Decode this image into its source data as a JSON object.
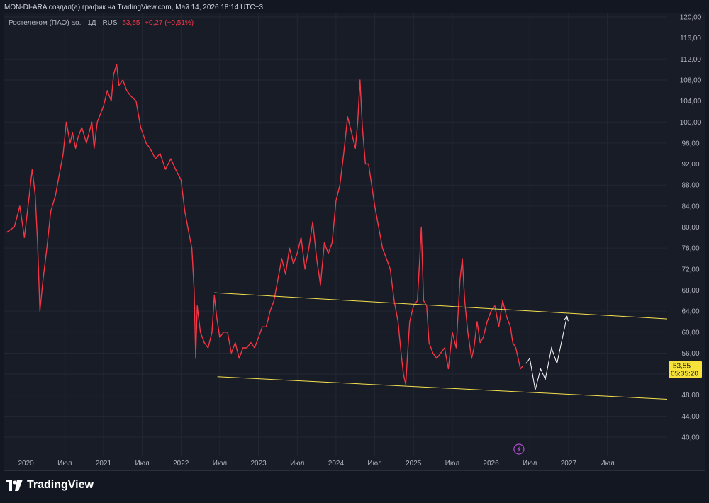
{
  "header": {
    "caption": "MON-DI-ARA создал(а) график на TradingView.com, Май 14, 2026 18:14 UTC+3"
  },
  "legend": {
    "symbol": "Ростелеком (ПАО) ао. · 1Д · RUS",
    "last": "53,55",
    "change": "+0,27 (+0,51%)"
  },
  "price_tag": {
    "value": "53,55",
    "countdown": "05:35:20"
  },
  "footer": {
    "brand": "TradingView"
  },
  "colors": {
    "series": "#f23645",
    "channel": "#f5e04f",
    "projection": "#ffffff",
    "tag_bg": "#f7e23a"
  },
  "chart_data": {
    "type": "line",
    "title": "Ростелеком (ПАО) ао. · 1Д · RUS",
    "ylim": [
      38,
      121
    ],
    "y_ticks": [
      "120,00",
      "116,00",
      "112,00",
      "108,00",
      "104,00",
      "100,00",
      "96,00",
      "92,00",
      "88,00",
      "84,00",
      "80,00",
      "76,00",
      "72,00",
      "68,00",
      "64,00",
      "60,00",
      "56,00",
      "52,00",
      "48,00",
      "44,00",
      "40,00"
    ],
    "x_ticks": [
      "2020",
      "Июл",
      "2021",
      "Июл",
      "2022",
      "Июл",
      "2023",
      "Июл",
      "2024",
      "Июл",
      "2025",
      "Июл",
      "2026",
      "Июл",
      "2027",
      "Июл"
    ],
    "x_tick_dates": [
      2020.0,
      2020.5,
      2021.0,
      2021.5,
      2022.0,
      2022.5,
      2023.0,
      2023.5,
      2024.0,
      2024.5,
      2025.0,
      2025.5,
      2026.0,
      2026.5,
      2027.0,
      2027.5
    ],
    "series": [
      {
        "values": [
          [
            2019.75,
            79
          ],
          [
            2019.85,
            80
          ],
          [
            2019.92,
            84
          ],
          [
            2019.98,
            78
          ],
          [
            2020.05,
            87
          ],
          [
            2020.08,
            91
          ],
          [
            2020.12,
            86
          ],
          [
            2020.15,
            77
          ],
          [
            2020.18,
            64
          ],
          [
            2020.22,
            70
          ],
          [
            2020.27,
            76
          ],
          [
            2020.32,
            83
          ],
          [
            2020.38,
            86
          ],
          [
            2020.43,
            90
          ],
          [
            2020.48,
            94
          ],
          [
            2020.52,
            100
          ],
          [
            2020.57,
            96
          ],
          [
            2020.6,
            98
          ],
          [
            2020.64,
            95
          ],
          [
            2020.67,
            97
          ],
          [
            2020.72,
            99
          ],
          [
            2020.78,
            96
          ],
          [
            2020.85,
            100
          ],
          [
            2020.88,
            95
          ],
          [
            2020.92,
            100
          ],
          [
            2021.0,
            103
          ],
          [
            2021.05,
            106
          ],
          [
            2021.1,
            104
          ],
          [
            2021.13,
            109
          ],
          [
            2021.17,
            111
          ],
          [
            2021.2,
            107
          ],
          [
            2021.25,
            108
          ],
          [
            2021.3,
            106
          ],
          [
            2021.35,
            105
          ],
          [
            2021.42,
            104
          ],
          [
            2021.48,
            99
          ],
          [
            2021.55,
            96
          ],
          [
            2021.6,
            95
          ],
          [
            2021.67,
            93
          ],
          [
            2021.73,
            94
          ],
          [
            2021.8,
            91
          ],
          [
            2021.87,
            93
          ],
          [
            2021.93,
            91
          ],
          [
            2022.0,
            89
          ],
          [
            2022.05,
            83
          ],
          [
            2022.1,
            79
          ],
          [
            2022.14,
            76
          ],
          [
            2022.17,
            68
          ],
          [
            2022.19,
            55
          ],
          [
            2022.21,
            65
          ],
          [
            2022.25,
            60
          ],
          [
            2022.3,
            58
          ],
          [
            2022.35,
            57
          ],
          [
            2022.4,
            60
          ],
          [
            2022.43,
            67
          ],
          [
            2022.46,
            63
          ],
          [
            2022.5,
            59
          ],
          [
            2022.55,
            60
          ],
          [
            2022.6,
            60
          ],
          [
            2022.65,
            56
          ],
          [
            2022.7,
            58
          ],
          [
            2022.75,
            55
          ],
          [
            2022.8,
            57
          ],
          [
            2022.85,
            57
          ],
          [
            2022.9,
            58
          ],
          [
            2022.95,
            57
          ],
          [
            2023.0,
            59
          ],
          [
            2023.05,
            61
          ],
          [
            2023.1,
            61
          ],
          [
            2023.15,
            64
          ],
          [
            2023.2,
            66
          ],
          [
            2023.25,
            70
          ],
          [
            2023.3,
            74
          ],
          [
            2023.35,
            71
          ],
          [
            2023.4,
            76
          ],
          [
            2023.45,
            73
          ],
          [
            2023.5,
            75
          ],
          [
            2023.55,
            78
          ],
          [
            2023.6,
            72
          ],
          [
            2023.65,
            76
          ],
          [
            2023.7,
            81
          ],
          [
            2023.75,
            74
          ],
          [
            2023.8,
            69
          ],
          [
            2023.85,
            77
          ],
          [
            2023.9,
            75
          ],
          [
            2023.95,
            77
          ],
          [
            2024.0,
            85
          ],
          [
            2024.05,
            88
          ],
          [
            2024.1,
            94
          ],
          [
            2024.15,
            101
          ],
          [
            2024.2,
            98
          ],
          [
            2024.25,
            95
          ],
          [
            2024.28,
            100
          ],
          [
            2024.31,
            108
          ],
          [
            2024.34,
            99
          ],
          [
            2024.38,
            92
          ],
          [
            2024.42,
            92
          ],
          [
            2024.46,
            88
          ],
          [
            2024.5,
            84
          ],
          [
            2024.55,
            80
          ],
          [
            2024.6,
            76
          ],
          [
            2024.65,
            74
          ],
          [
            2024.7,
            72
          ],
          [
            2024.75,
            66
          ],
          [
            2024.8,
            62
          ],
          [
            2024.84,
            56
          ],
          [
            2024.87,
            52
          ],
          [
            2024.9,
            50
          ],
          [
            2024.92,
            55
          ],
          [
            2024.95,
            62
          ],
          [
            2025.0,
            65
          ],
          [
            2025.05,
            66
          ],
          [
            2025.08,
            74
          ],
          [
            2025.1,
            80
          ],
          [
            2025.13,
            66
          ],
          [
            2025.17,
            65
          ],
          [
            2025.2,
            58
          ],
          [
            2025.25,
            56
          ],
          [
            2025.3,
            55
          ],
          [
            2025.35,
            56
          ],
          [
            2025.4,
            57
          ],
          [
            2025.45,
            53
          ],
          [
            2025.5,
            60
          ],
          [
            2025.55,
            57
          ],
          [
            2025.6,
            70
          ],
          [
            2025.63,
            74
          ],
          [
            2025.66,
            66
          ],
          [
            2025.7,
            60
          ],
          [
            2025.75,
            55
          ],
          [
            2025.78,
            57
          ],
          [
            2025.82,
            62
          ],
          [
            2025.86,
            58
          ],
          [
            2025.9,
            59
          ],
          [
            2025.95,
            62
          ],
          [
            2026.0,
            64
          ],
          [
            2026.05,
            65
          ],
          [
            2026.1,
            61
          ],
          [
            2026.15,
            66
          ],
          [
            2026.2,
            63
          ],
          [
            2026.25,
            61
          ],
          [
            2026.28,
            58
          ],
          [
            2026.32,
            57
          ],
          [
            2026.35,
            55
          ],
          [
            2026.38,
            53
          ],
          [
            2026.41,
            53.55
          ]
        ]
      }
    ],
    "channel_upper": [
      [
        2022.43,
        67.5
      ],
      [
        2028.3,
        62.5
      ]
    ],
    "channel_lower": [
      [
        2022.47,
        51.5
      ],
      [
        2028.3,
        47.2
      ]
    ],
    "projection": [
      [
        2026.45,
        54
      ],
      [
        2026.5,
        55
      ],
      [
        2026.57,
        49
      ],
      [
        2026.64,
        53
      ],
      [
        2026.7,
        51
      ],
      [
        2026.78,
        57
      ],
      [
        2026.85,
        54
      ],
      [
        2026.98,
        63
      ]
    ]
  }
}
